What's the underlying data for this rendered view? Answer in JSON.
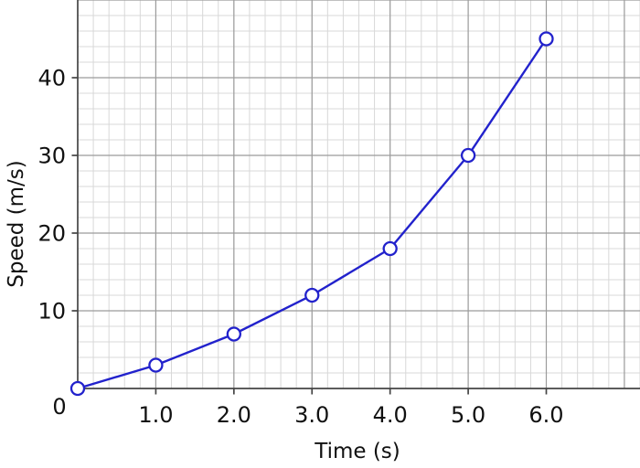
{
  "chart_data": {
    "type": "line",
    "title": "",
    "x": [
      0,
      1,
      2,
      3,
      4,
      5,
      6
    ],
    "y": [
      0,
      3,
      7,
      12,
      18,
      30,
      45
    ],
    "x_axis": {
      "title": "Time (s)",
      "lim": [
        0,
        7.2
      ],
      "major_step": 1,
      "minor_step": 0.2,
      "tick_values": [
        1,
        2,
        3,
        4,
        5,
        6
      ],
      "tick_labels": [
        "1.0",
        "2.0",
        "3.0",
        "4.0",
        "5.0",
        "6.0"
      ]
    },
    "y_axis": {
      "title": "Speed (m/s)",
      "lim": [
        0,
        50
      ],
      "major_step": 10,
      "minor_step": 2,
      "tick_values": [
        0,
        10,
        20,
        30,
        40
      ],
      "tick_labels": [
        "",
        "10",
        "20",
        "30",
        "40"
      ]
    },
    "origin_label": "0",
    "grid": "major+minor",
    "legend": false,
    "colors": {
      "line": "#2222cc",
      "marker_fill": "#ffffff",
      "marker_edge": "#2222cc",
      "grid_minor": "#d8d8d8",
      "grid_major": "#9b9b9b",
      "spine": "#444444",
      "text": "#111111",
      "background": "#ffffff"
    }
  }
}
